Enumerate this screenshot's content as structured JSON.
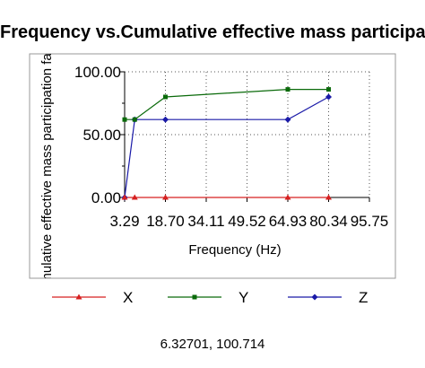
{
  "chart_data": {
    "type": "line",
    "title": "Frequency vs.Cumulative effective mass participation factor",
    "xlabel": "Frequency (Hz)",
    "ylabel": "Cumulative effective mass participation factor",
    "x": [
      3.29,
      7.1,
      18.7,
      64.93,
      80.34
    ],
    "xlim": [
      3.29,
      95.75
    ],
    "ylim": [
      0,
      100
    ],
    "x_tick_labels": [
      "3.29",
      "18.70",
      "34.11",
      "49.52",
      "64.93",
      "80.34",
      "95.75"
    ],
    "y_tick_labels": [
      "0.00",
      "50.00",
      "100.00"
    ],
    "grid": true,
    "legend_position": "bottom",
    "series": [
      {
        "name": "X",
        "color": "#d62020",
        "marker": "triangle",
        "values": [
          0,
          0,
          0,
          0,
          0
        ]
      },
      {
        "name": "Y",
        "color": "#0a6a0a",
        "marker": "square",
        "values": [
          62,
          62,
          80,
          86,
          86
        ]
      },
      {
        "name": "Z",
        "color": "#1a1aa8",
        "marker": "diamond",
        "values": [
          0,
          62,
          62,
          62,
          80
        ]
      }
    ]
  },
  "cursor_readout": "6.32701, 100.714"
}
